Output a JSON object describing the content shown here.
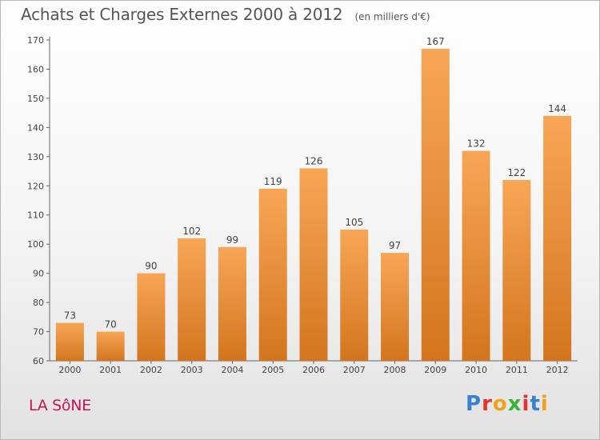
{
  "header": {
    "title": "Achats et Charges Externes 2000 à 2012",
    "unit": "(en milliers d'€)"
  },
  "footer": {
    "place": "LA SôNE",
    "brand": "Proxiti"
  },
  "colors": {
    "bar_light": "#f7a656",
    "bar_dark": "#d4751e",
    "place": "#c8154f",
    "brand_letters": [
      "#3b7fd4",
      "#e5322e",
      "#f0a21a",
      "#3bb33b",
      "#e5322e",
      "#3b7fd4",
      "#f0a21a"
    ]
  },
  "chart_data": {
    "type": "bar",
    "title": "Achats et Charges Externes 2000 à 2012",
    "subtitle": "(en milliers d'€)",
    "categories": [
      "2000",
      "2001",
      "2002",
      "2003",
      "2004",
      "2005",
      "2006",
      "2007",
      "2008",
      "2009",
      "2010",
      "2011",
      "2012"
    ],
    "values": [
      73,
      70,
      90,
      102,
      99,
      119,
      126,
      105,
      97,
      167,
      132,
      122,
      144
    ],
    "xlabel": "",
    "ylabel": "",
    "ylim": [
      60,
      170
    ],
    "yticks": [
      60,
      70,
      80,
      90,
      100,
      110,
      120,
      130,
      140,
      150,
      160,
      170
    ],
    "grid": false,
    "data_labels": true
  }
}
